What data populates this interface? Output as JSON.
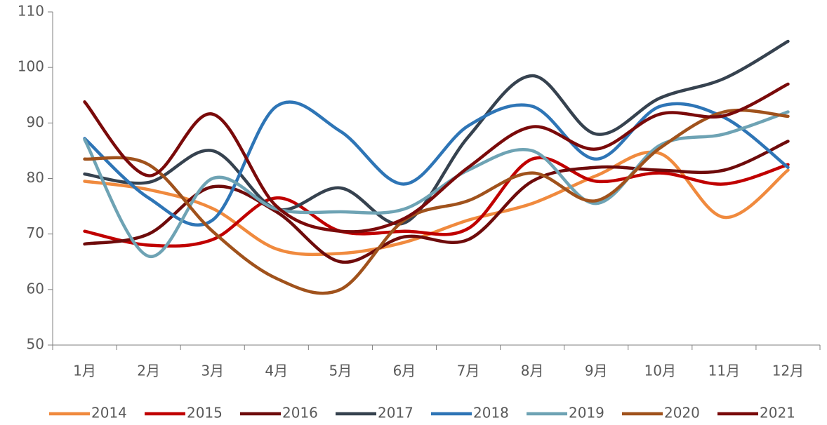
{
  "chart_data": {
    "type": "line",
    "smooth": true,
    "categories": [
      "1月",
      "2月",
      "3月",
      "4月",
      "5月",
      "6月",
      "7月",
      "8月",
      "9月",
      "10月",
      "11月",
      "12月"
    ],
    "ylim": [
      50,
      110
    ],
    "yticks": [
      50,
      60,
      70,
      80,
      90,
      100,
      110
    ],
    "grid": false,
    "legend": "bottom",
    "series": [
      {
        "name": "2014",
        "color": "#f08a3e",
        "values": [
          79.5,
          78,
          74.6,
          67.3,
          66.5,
          68.5,
          72.5,
          75.5,
          80.5,
          84.5,
          73,
          81.5
        ]
      },
      {
        "name": "2015",
        "color": "#c00000",
        "values": [
          70.5,
          68,
          69,
          76.5,
          70.5,
          70.5,
          71,
          83.5,
          79.5,
          81,
          79,
          82.5
        ]
      },
      {
        "name": "2016",
        "color": "#6e0b0b",
        "values": [
          68.2,
          70,
          78.5,
          74,
          65,
          69.5,
          69,
          79.5,
          82,
          81.5,
          81.5,
          86.7
        ]
      },
      {
        "name": "2017",
        "color": "#36424f",
        "values": [
          80.8,
          79.3,
          85,
          74.5,
          78.3,
          72,
          87.5,
          98.5,
          88,
          94.5,
          98,
          104.7
        ]
      },
      {
        "name": "2018",
        "color": "#2e75b6",
        "values": [
          87.2,
          76.5,
          72.5,
          93,
          88.5,
          79,
          89.5,
          93,
          83.5,
          93,
          91,
          82
        ]
      },
      {
        "name": "2019",
        "color": "#6ea3b4",
        "values": [
          87,
          66,
          80,
          74.5,
          74,
          74.5,
          81.5,
          85,
          75.5,
          86,
          88,
          92
        ]
      },
      {
        "name": "2020",
        "color": "#a0521c",
        "values": [
          83.5,
          82.5,
          70.5,
          62,
          60,
          72.5,
          76,
          81,
          76,
          85.5,
          92,
          91.2
        ]
      },
      {
        "name": "2021",
        "color": "#7a0a0a",
        "values": [
          93.8,
          80.5,
          91.6,
          75,
          70.5,
          72.8,
          82,
          89.3,
          85.3,
          91.6,
          91.3,
          97
        ]
      }
    ]
  }
}
